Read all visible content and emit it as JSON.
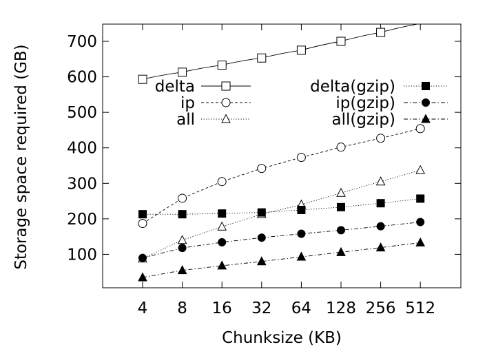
{
  "chart_data": {
    "type": "line",
    "title": "",
    "xlabel": "Chunksize (KB)",
    "ylabel": "Storage space required (GB)",
    "categories": [
      "4",
      "8",
      "16",
      "32",
      "64",
      "128",
      "256",
      "512"
    ],
    "ylim": [
      0,
      750
    ],
    "yticks": [
      100,
      200,
      300,
      400,
      500,
      600,
      700
    ],
    "grid": false,
    "legend_placement": "top, two columns",
    "series": [
      {
        "name": "delta",
        "values": [
          593,
          613,
          633,
          653,
          675,
          700,
          725,
          750
        ],
        "marker": "square-open",
        "dash": "solid",
        "fit": true
      },
      {
        "name": "ip",
        "values": [
          187,
          258,
          305,
          342,
          373,
          402,
          427,
          454
        ],
        "marker": "circle-open",
        "dash": "dashed"
      },
      {
        "name": "all",
        "values": [
          88,
          140,
          178,
          213,
          240,
          273,
          305,
          337
        ],
        "marker": "triangle-open",
        "dash": "dotted"
      },
      {
        "name": "delta(gzip)",
        "values": [
          213,
          213,
          215,
          218,
          225,
          233,
          244,
          257
        ],
        "marker": "square-filled",
        "dash": "dotted"
      },
      {
        "name": "ip(gzip)",
        "values": [
          90,
          118,
          134,
          147,
          158,
          168,
          179,
          191
        ],
        "marker": "circle-filled",
        "dash": "dashdot"
      },
      {
        "name": "all(gzip)",
        "values": [
          35,
          55,
          68,
          80,
          93,
          106,
          119,
          133
        ],
        "marker": "triangle-filled",
        "dash": "dashdot"
      }
    ]
  }
}
